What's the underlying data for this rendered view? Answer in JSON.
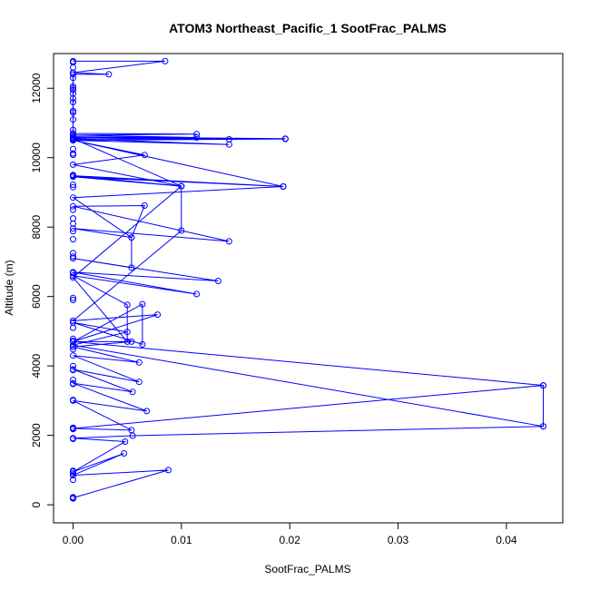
{
  "chart_data": {
    "type": "line",
    "title": "ATOM3 Northeast_Pacific_1 SootFrac_PALMS",
    "xlabel": "SootFrac_PALMS",
    "ylabel": "Altitude (m)",
    "xlim": [
      -0.0018,
      0.0452
    ],
    "ylim": [
      -520,
      13000
    ],
    "xticks": [
      0.0,
      0.01,
      0.02,
      0.03,
      0.04
    ],
    "xtick_labels": [
      "0.00",
      "0.01",
      "0.02",
      "0.03",
      "0.04"
    ],
    "yticks": [
      0,
      2000,
      4000,
      6000,
      8000,
      10000,
      12000
    ],
    "ytick_labels": [
      "0",
      "2000",
      "4000",
      "6000",
      "8000",
      "10000",
      "12000"
    ],
    "grid": false,
    "legend": "none",
    "series_color": "#0000ff",
    "marker": "open-circle",
    "points": [
      [
        0.0,
        200
      ],
      [
        0.0088,
        1000
      ],
      [
        0.0,
        850
      ],
      [
        0.0047,
        1480
      ],
      [
        0.0,
        950
      ],
      [
        0.0048,
        1820
      ],
      [
        0.0,
        1920
      ],
      [
        0.0055,
        1990
      ],
      [
        0.0434,
        2260
      ],
      [
        0.0434,
        3440
      ],
      [
        0.0,
        2200
      ],
      [
        0.0054,
        2150
      ],
      [
        0.0,
        3000
      ],
      [
        0.0068,
        2700
      ],
      [
        0.0,
        3500
      ],
      [
        0.0055,
        3250
      ],
      [
        0.0,
        3900
      ],
      [
        0.0061,
        3540
      ],
      [
        0.0,
        4300
      ],
      [
        0.0061,
        4100
      ],
      [
        0.0,
        4550
      ],
      [
        0.0054,
        4700
      ],
      [
        0.0,
        4700
      ],
      [
        0.0434,
        3440
      ],
      [
        0.0434,
        2260
      ],
      [
        0.0,
        4600
      ],
      [
        0.005,
        4980
      ],
      [
        0.0,
        5250
      ],
      [
        0.0064,
        4620
      ],
      [
        0.0064,
        5780
      ],
      [
        0.0,
        4700
      ],
      [
        0.0078,
        5480
      ],
      [
        0.0,
        5300
      ],
      [
        0.01,
        7900
      ],
      [
        0.01,
        9180
      ],
      [
        0.0,
        6550
      ],
      [
        0.005,
        4700
      ],
      [
        0.005,
        5760
      ],
      [
        0.0,
        6600
      ],
      [
        0.0114,
        6070
      ],
      [
        0.0,
        6700
      ],
      [
        0.0134,
        6450
      ],
      [
        0.0,
        7100
      ],
      [
        0.0054,
        6830
      ],
      [
        0.0054,
        7700
      ],
      [
        0.0,
        7960
      ],
      [
        0.0144,
        7590
      ],
      [
        0.0,
        8600
      ],
      [
        0.0066,
        8620
      ],
      [
        0.0054,
        7700
      ],
      [
        0.0,
        8850
      ],
      [
        0.0194,
        9170
      ],
      [
        0.0,
        9450
      ],
      [
        0.01,
        9180
      ],
      [
        0.0,
        9800
      ],
      [
        0.0066,
        10080
      ],
      [
        0.0,
        10500
      ],
      [
        0.0144,
        10380
      ],
      [
        0.0,
        10550
      ],
      [
        0.01,
        9180
      ],
      [
        0.0,
        9480
      ],
      [
        0.0194,
        9170
      ],
      [
        0.0,
        10500
      ],
      [
        0.0196,
        10540
      ],
      [
        0.0,
        10520
      ],
      [
        0.0144,
        10530
      ],
      [
        0.0,
        10570
      ],
      [
        0.0196,
        10550
      ],
      [
        0.0,
        10600
      ],
      [
        0.0114,
        10580
      ],
      [
        0.0,
        10650
      ],
      [
        0.0114,
        10680
      ],
      [
        0.0,
        10700
      ],
      [
        0.0,
        11300
      ],
      [
        0.0,
        12000
      ],
      [
        0.0,
        12400
      ],
      [
        0.0033,
        12400
      ],
      [
        0.0,
        12450
      ],
      [
        0.0085,
        12780
      ],
      [
        0.0,
        12780
      ]
    ],
    "extra_markers": [
      [
        0.0,
        180
      ],
      [
        0.0,
        220
      ],
      [
        0.0,
        720
      ],
      [
        0.0,
        900
      ],
      [
        0.0,
        980
      ],
      [
        0.0,
        1900
      ],
      [
        0.0,
        2180
      ],
      [
        0.0,
        2220
      ],
      [
        0.0,
        3020
      ],
      [
        0.0,
        3480
      ],
      [
        0.0,
        3600
      ],
      [
        0.0,
        3880
      ],
      [
        0.0,
        4000
      ],
      [
        0.0,
        4480
      ],
      [
        0.0,
        4720
      ],
      [
        0.0,
        4780
      ],
      [
        0.0,
        5100
      ],
      [
        0.0,
        5900
      ],
      [
        0.0,
        5960
      ],
      [
        0.0,
        6680
      ],
      [
        0.0,
        7150
      ],
      [
        0.0,
        7250
      ],
      [
        0.0,
        7650
      ],
      [
        0.0,
        7880
      ],
      [
        0.0,
        8100
      ],
      [
        0.0,
        8250
      ],
      [
        0.0,
        8500
      ],
      [
        0.0,
        9150
      ],
      [
        0.0,
        9220
      ],
      [
        0.0,
        9500
      ],
      [
        0.0,
        10080
      ],
      [
        0.0,
        10120
      ],
      [
        0.0,
        10250
      ],
      [
        0.0,
        10650
      ],
      [
        0.0,
        10800
      ],
      [
        0.0,
        11100
      ],
      [
        0.0,
        11350
      ],
      [
        0.0,
        11600
      ],
      [
        0.0,
        11700
      ],
      [
        0.0,
        11850
      ],
      [
        0.0,
        11950
      ],
      [
        0.0,
        12050
      ],
      [
        0.0,
        12300
      ],
      [
        0.0,
        12450
      ],
      [
        0.0,
        12600
      ],
      [
        0.0,
        12750
      ]
    ]
  }
}
